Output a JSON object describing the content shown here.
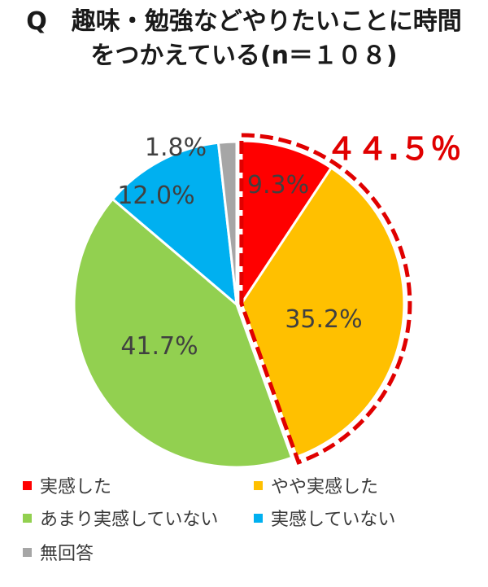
{
  "title": {
    "line1": "Q　趣味・勉強などやりたいことに時間",
    "line2": "をつかえている(n＝１０８)"
  },
  "highlight_label": "４４.５％",
  "chart_data": {
    "type": "pie",
    "title": "Q　趣味・勉強などやりたいことに時間をつかえている(n＝１０８)",
    "slices": [
      {
        "name": "実感した",
        "value": 9.3,
        "label": "9.3%",
        "color": "#ff0000"
      },
      {
        "name": "やや実感した",
        "value": 35.2,
        "label": "35.2%",
        "color": "#ffc000"
      },
      {
        "name": "あまり実感していない",
        "value": 41.7,
        "label": "41.7%",
        "color": "#92d050"
      },
      {
        "name": "実感していない",
        "value": 12.0,
        "label": "12.0%",
        "color": "#00b0f0"
      },
      {
        "name": "無回答",
        "value": 1.8,
        "label": "1.8%",
        "color": "#a6a6a6"
      }
    ],
    "highlight": {
      "slices": [
        "実感した",
        "やや実感した"
      ],
      "total_label": "４４.５％",
      "color": "#e00000"
    },
    "legend_position": "bottom"
  }
}
